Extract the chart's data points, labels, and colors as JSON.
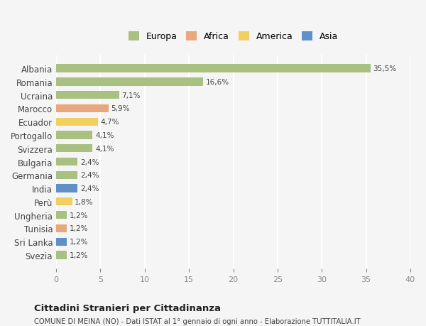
{
  "countries": [
    "Albania",
    "Romania",
    "Ucraina",
    "Marocco",
    "Ecuador",
    "Portogallo",
    "Svizzera",
    "Bulgaria",
    "Germania",
    "India",
    "Perù",
    "Ungheria",
    "Tunisia",
    "Sri Lanka",
    "Svezia"
  ],
  "values": [
    35.5,
    16.6,
    7.1,
    5.9,
    4.7,
    4.1,
    4.1,
    2.4,
    2.4,
    2.4,
    1.8,
    1.2,
    1.2,
    1.2,
    1.2
  ],
  "labels": [
    "35,5%",
    "16,6%",
    "7,1%",
    "5,9%",
    "4,7%",
    "4,1%",
    "4,1%",
    "2,4%",
    "2,4%",
    "2,4%",
    "1,8%",
    "1,2%",
    "1,2%",
    "1,2%",
    "1,2%"
  ],
  "continents": [
    "Europa",
    "Europa",
    "Europa",
    "Africa",
    "America",
    "Europa",
    "Europa",
    "Europa",
    "Europa",
    "Asia",
    "America",
    "Europa",
    "Africa",
    "Asia",
    "Europa"
  ],
  "colors": {
    "Europa": "#a8c080",
    "Africa": "#e8a87c",
    "America": "#f0d060",
    "Asia": "#6090c8"
  },
  "legend_order": [
    "Europa",
    "Africa",
    "America",
    "Asia"
  ],
  "xlim": [
    0,
    40
  ],
  "xticks": [
    0,
    5,
    10,
    15,
    20,
    25,
    30,
    35,
    40
  ],
  "title": "Cittadini Stranieri per Cittadinanza",
  "subtitle": "COMUNE DI MEINA (NO) - Dati ISTAT al 1° gennaio di ogni anno - Elaborazione TUTTITALIA.IT",
  "bg_color": "#f5f5f5",
  "grid_color": "#ffffff",
  "bar_height": 0.6
}
